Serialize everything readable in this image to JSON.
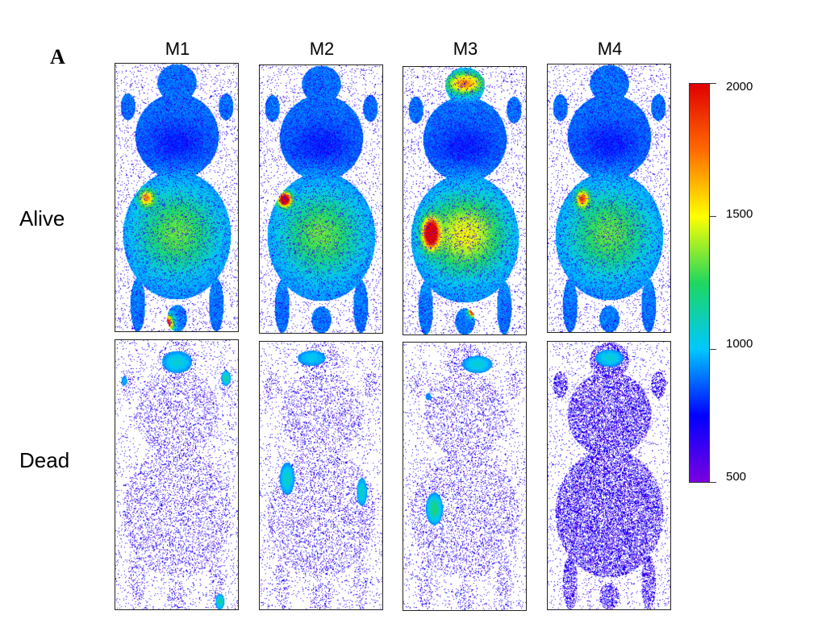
{
  "panel_label": "A",
  "columns": [
    "M1",
    "M2",
    "M3",
    "M4"
  ],
  "rows": [
    "Alive",
    "Dead"
  ],
  "colorbar": {
    "max_label": "2000",
    "mid_high_label": "1500",
    "mid_low_label": "1000",
    "min_label": "500",
    "scale_min": 500,
    "scale_max": 2000,
    "colors": [
      "#7a00e0",
      "#0000ff",
      "#00c8ff",
      "#1ed760",
      "#ffff00",
      "#ff6a00",
      "#e00000"
    ]
  }
}
